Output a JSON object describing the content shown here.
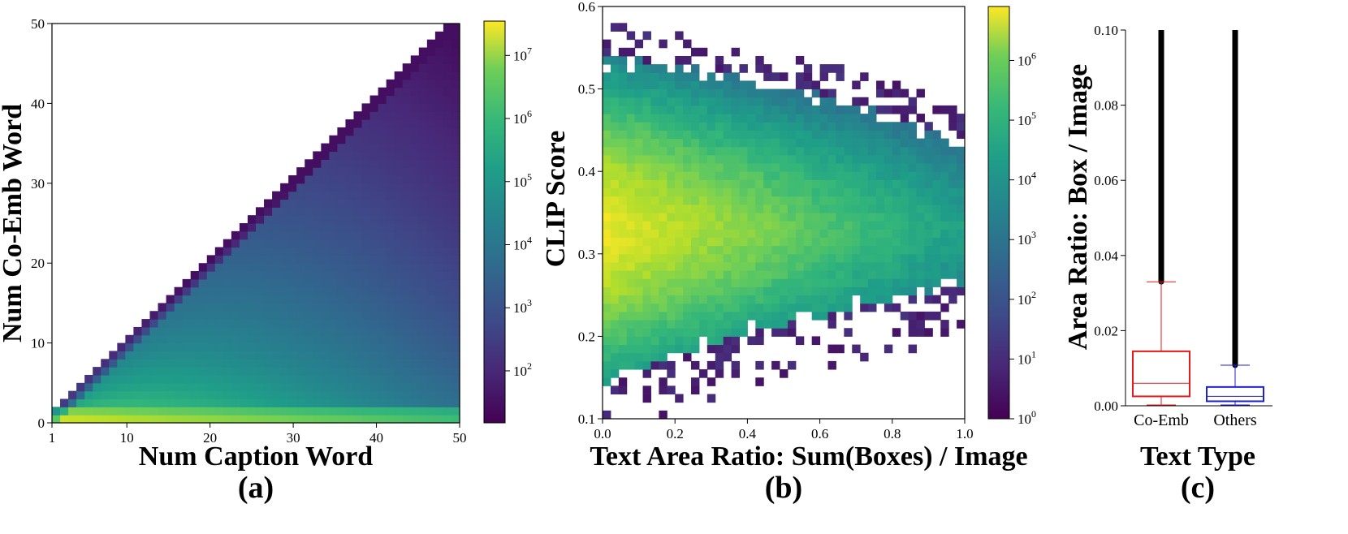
{
  "chart_data": [
    {
      "type": "heatmap",
      "panel_label": "(a)",
      "xlabel": "Num Caption Word",
      "ylabel": "Num Co-Emb Word",
      "x_ticks": [
        "1",
        "10",
        "20",
        "30",
        "40",
        "50"
      ],
      "x_tick_values": [
        1,
        10,
        20,
        30,
        40,
        50
      ],
      "y_ticks": [
        "0",
        "10",
        "20",
        "30",
        "40",
        "50"
      ],
      "y_tick_values": [
        0,
        10,
        20,
        30,
        40,
        50
      ],
      "xlim": [
        1,
        50
      ],
      "ylim": [
        0,
        50
      ],
      "colorbar": {
        "scale": "log",
        "ticks": [
          {
            "base": "10",
            "exp": "2"
          },
          {
            "base": "10",
            "exp": "3"
          },
          {
            "base": "10",
            "exp": "4"
          },
          {
            "base": "10",
            "exp": "5"
          },
          {
            "base": "10",
            "exp": "6"
          },
          {
            "base": "10",
            "exp": "7"
          }
        ],
        "tick_values": [
          100,
          1000,
          10000,
          100000,
          1000000,
          10000000
        ],
        "range": [
          15,
          35000000
        ]
      },
      "colormap": "viridis"
    },
    {
      "type": "heatmap",
      "panel_label": "(b)",
      "xlabel": "Text Area Ratio: Sum(Boxes) / Image",
      "ylabel": "CLIP Score",
      "x_ticks": [
        "0.0",
        "0.2",
        "0.4",
        "0.6",
        "0.8",
        "1.0"
      ],
      "x_tick_values": [
        0.0,
        0.2,
        0.4,
        0.6,
        0.8,
        1.0
      ],
      "y_ticks": [
        "0.1",
        "0.2",
        "0.3",
        "0.4",
        "0.5",
        "0.6"
      ],
      "y_tick_values": [
        0.1,
        0.2,
        0.3,
        0.4,
        0.5,
        0.6
      ],
      "xlim": [
        0.0,
        1.0
      ],
      "ylim": [
        0.1,
        0.6
      ],
      "colorbar": {
        "scale": "log",
        "ticks": [
          {
            "base": "10",
            "exp": "0"
          },
          {
            "base": "10",
            "exp": "1"
          },
          {
            "base": "10",
            "exp": "2"
          },
          {
            "base": "10",
            "exp": "3"
          },
          {
            "base": "10",
            "exp": "4"
          },
          {
            "base": "10",
            "exp": "5"
          },
          {
            "base": "10",
            "exp": "6"
          }
        ],
        "tick_values": [
          1,
          10,
          100,
          1000,
          10000,
          100000,
          1000000
        ],
        "range": [
          1,
          8000000
        ]
      },
      "colormap": "viridis"
    },
    {
      "type": "box",
      "panel_label": "(c)",
      "xlabel": "Text Type",
      "ylabel": "Area Ratio: Box / Image",
      "categories": [
        "Co-Emb",
        "Others"
      ],
      "y_ticks": [
        "0.00",
        "0.02",
        "0.04",
        "0.06",
        "0.08",
        "0.10"
      ],
      "y_tick_values": [
        0.0,
        0.02,
        0.04,
        0.06,
        0.08,
        0.1
      ],
      "ylim": [
        0.0,
        0.1
      ],
      "boxes": [
        {
          "category": "Co-Emb",
          "whisker_low": 0.0,
          "q1": 0.0025,
          "median": 0.006,
          "q3": 0.0145,
          "whisker_high": 0.033,
          "outliers_to": 0.1,
          "color": "#e41a1c"
        },
        {
          "category": "Others",
          "whisker_low": 0.0,
          "q1": 0.0012,
          "median": 0.0025,
          "q3": 0.005,
          "whisker_high": 0.0108,
          "outliers_to": 0.1,
          "color": "#1f1fd6"
        }
      ]
    }
  ]
}
